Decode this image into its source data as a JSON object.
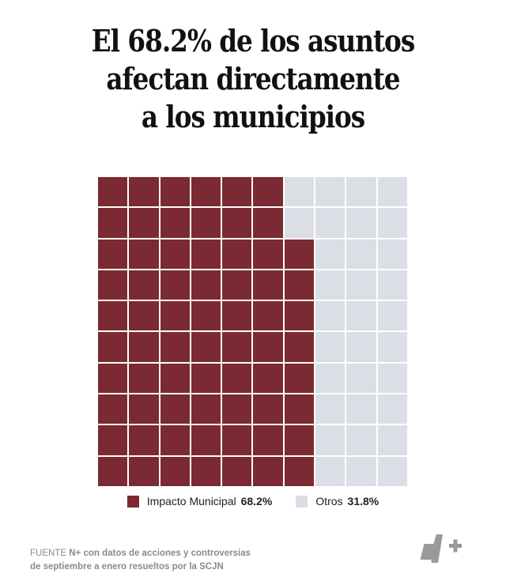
{
  "title": {
    "line1": "El 68.2% de los asuntos",
    "line2": "afectan directamente",
    "line3": "a los municipios"
  },
  "legend": {
    "items": [
      {
        "label": "Impacto Municipal",
        "value": "68.2%",
        "color": "#7b2a33"
      },
      {
        "label": "Otros",
        "value": "31.8%",
        "color": "#dcdee5"
      }
    ]
  },
  "source": {
    "prefix": "FUENTE",
    "brand": "N+",
    "line1_rest": "con datos de acciones y controversias",
    "line2": "de septiembre a enero resueltos por la SCJN"
  },
  "logo": {
    "name": "N+"
  },
  "colors": {
    "primary": "#7b2a33",
    "secondary": "#dcdee5"
  },
  "chart_data": {
    "type": "waffle",
    "title": "El 68.2% de los asuntos afectan directamente a los municipios",
    "grid": {
      "rows": 10,
      "cols": 10,
      "fill_order": "column-major snake: first 6 columns full, column 7 filled rows 3-10"
    },
    "categories": [
      "Impacto Municipal",
      "Otros"
    ],
    "values": [
      68.2,
      31.8
    ],
    "cells": [
      68,
      32
    ],
    "row_fill_counts": [
      6,
      6,
      7,
      7,
      7,
      7,
      7,
      7,
      7,
      7
    ],
    "legend_position": "bottom",
    "grid_lines": true
  }
}
